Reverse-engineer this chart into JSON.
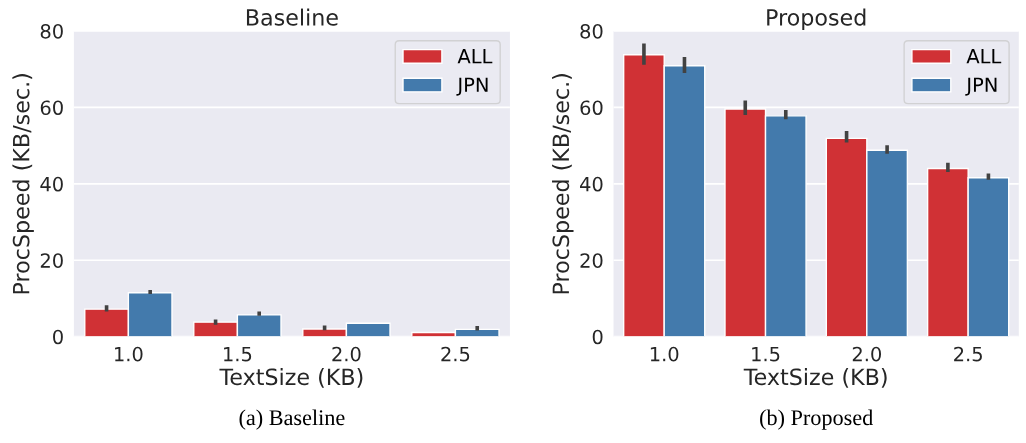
{
  "chart_data": [
    {
      "type": "bar",
      "title": "Baseline",
      "xlabel": "TextSize (KB)",
      "ylabel": "ProcSpeed (KB/sec.)",
      "categories": [
        "1.0",
        "1.5",
        "2.0",
        "2.5"
      ],
      "ylim": [
        0,
        80
      ],
      "yticks": [
        0,
        20,
        40,
        60,
        80
      ],
      "grid": "y",
      "legend": "top right",
      "annotations": [
        "(a) Baseline"
      ],
      "series": [
        {
          "name": "ALL",
          "color": "#d03135",
          "values": [
            7.2,
            3.8,
            2.0,
            1.1
          ],
          "errors": [
            [
              6.6,
              8.2
            ],
            [
              3.1,
              4.5
            ],
            [
              1.7,
              2.9
            ],
            null
          ]
        },
        {
          "name": "JPN",
          "color": "#437aac",
          "values": [
            11.5,
            5.7,
            3.5,
            1.9
          ],
          "errors": [
            [
              11.2,
              12.2
            ],
            [
              5.5,
              6.6
            ],
            null,
            [
              1.6,
              2.8
            ]
          ]
        }
      ]
    },
    {
      "type": "bar",
      "title": "Proposed",
      "xlabel": "TextSize (KB)",
      "ylabel": "ProcSpeed (KB/sec.)",
      "categories": [
        "1.0",
        "1.5",
        "2.0",
        "2.5"
      ],
      "ylim": [
        0,
        80
      ],
      "yticks": [
        0,
        20,
        40,
        60,
        80
      ],
      "grid": "y",
      "legend": "top right",
      "annotations": [
        "(b) Proposed"
      ],
      "series": [
        {
          "name": "ALL",
          "color": "#d03135",
          "values": [
            73.8,
            59.6,
            51.9,
            44.0
          ],
          "errors": [
            [
              71.2,
              76.7
            ],
            [
              58.0,
              61.8
            ],
            [
              50.8,
              53.8
            ],
            [
              43.1,
              45.5
            ]
          ]
        },
        {
          "name": "JPN",
          "color": "#437aac",
          "values": [
            70.9,
            57.8,
            48.8,
            41.6
          ],
          "errors": [
            [
              69.0,
              73.2
            ],
            [
              56.9,
              59.3
            ],
            [
              47.9,
              50.1
            ],
            [
              41.1,
              42.7
            ]
          ]
        }
      ]
    }
  ]
}
